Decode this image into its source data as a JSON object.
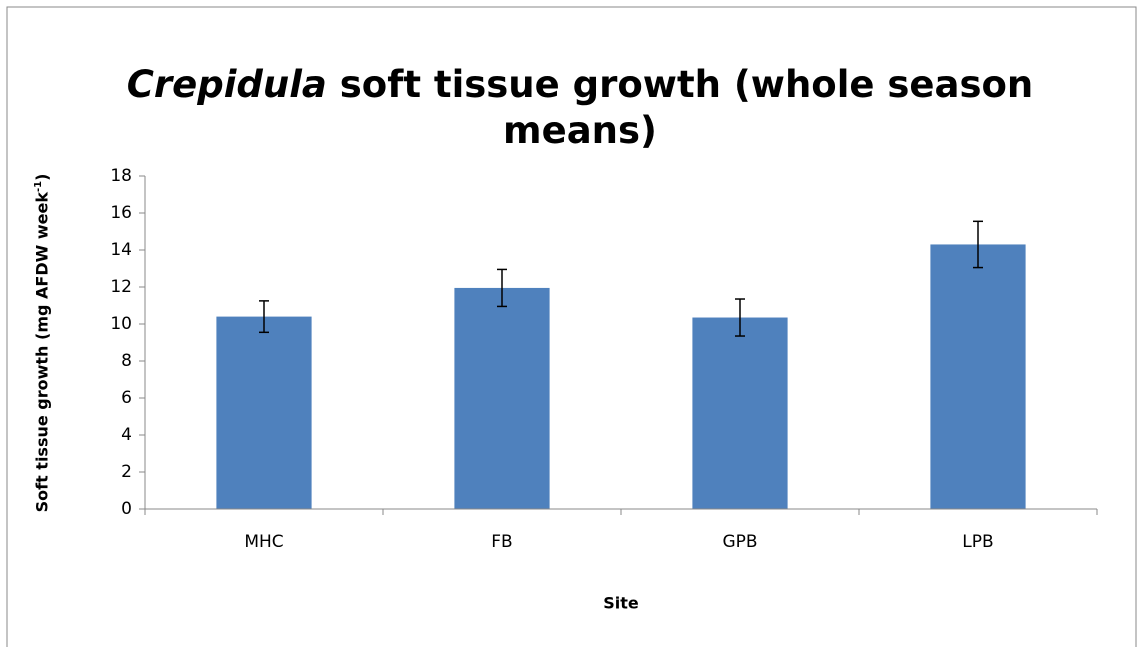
{
  "chart_data": {
    "type": "bar",
    "title": [
      {
        "text": "Crepidula",
        "italic": true
      },
      {
        "text": "soft tissue growth (whole season means)"
      }
    ],
    "x_label": "Site",
    "y_label": [
      {
        "text": "Soft tissue growth (mg AFDW week"
      },
      {
        "text": "-1",
        "sup": true
      },
      {
        "text": ")"
      }
    ],
    "categories": [
      "MHC",
      "FB",
      "GPB",
      "LPB"
    ],
    "values": [
      10.4,
      11.95,
      10.35,
      14.3
    ],
    "errors": [
      0.85,
      1.0,
      1.0,
      1.25
    ],
    "color": "#4f81bd",
    "ylim": [
      0,
      18
    ],
    "yticks": [
      0,
      2,
      4,
      6,
      8,
      10,
      12,
      14,
      16,
      18
    ],
    "grid": false
  }
}
